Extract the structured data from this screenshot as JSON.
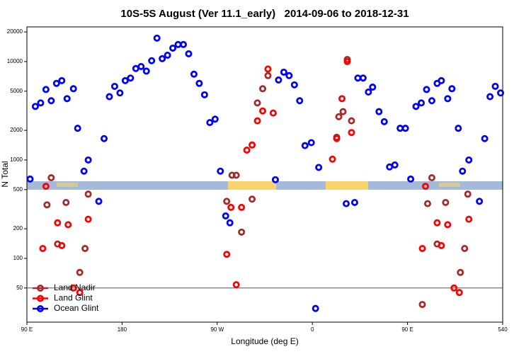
{
  "chart_data": {
    "type": "scatter",
    "title": "10S-5S August (Ver 11.1_early)   2014-09-06 to 2018-12-31",
    "x_label": "Longitude (deg E)",
    "y_label": "N Total",
    "log_y": true,
    "xlim": [
      90,
      540
    ],
    "ylim": [
      22.5,
      22500
    ],
    "xticks": [
      {
        "value": 90,
        "label": "90 E"
      },
      180,
      {
        "value": 270,
        "label": "90 W"
      },
      {
        "value": 360,
        "label": "0"
      },
      {
        "value": 450,
        "label": "90 E"
      },
      540
    ],
    "yticks": [
      50,
      100,
      200,
      500,
      1000,
      2000,
      5000,
      10000,
      20000
    ],
    "reference_line": 50,
    "legend": "bottom-left",
    "series": [
      {
        "name": "Land Nadir",
        "color": "#a52a2a",
        "x": [
          109,
          113,
          119,
          127,
          140,
          145,
          148,
          279,
          284,
          288,
          293,
          303,
          308,
          313,
          318,
          383,
          385,
          389,
          393,
          397,
          464,
          469,
          473,
          478,
          486,
          500,
          504,
          507
        ],
        "values": [
          350,
          660,
          140,
          370,
          72,
          126,
          450,
          380,
          700,
          700,
          185,
          400,
          3800,
          5300,
          7200,
          1700,
          2750,
          3100,
          10500,
          2500,
          34,
          360,
          660,
          140,
          370,
          72,
          126,
          450
        ]
      },
      {
        "name": "Land Glint",
        "color": "#ff0000",
        "x": [
          105,
          108,
          119,
          123,
          129,
          134,
          140,
          148,
          279,
          283,
          288,
          293,
          298,
          303,
          308,
          313,
          318,
          323,
          379,
          383,
          388,
          393,
          397,
          464,
          467,
          478,
          482,
          488,
          494,
          499,
          508
        ],
        "values": [
          126,
          540,
          230,
          135,
          220,
          50,
          45,
          250,
          110,
          330,
          54,
          330,
          1260,
          1420,
          2500,
          3150,
          8400,
          3000,
          1020,
          1650,
          4200,
          10000,
          1900,
          126,
          540,
          230,
          135,
          220,
          50,
          45,
          250
        ]
      },
      {
        "name": "Ocean Glint",
        "color": "#0000ff",
        "x": [
          93,
          98,
          103,
          108,
          113,
          118,
          123,
          128,
          134,
          138,
          144,
          148,
          158,
          163,
          168,
          173,
          178,
          183,
          188,
          193,
          198,
          203,
          208,
          213,
          218,
          223,
          228,
          233,
          238,
          243,
          248,
          253,
          258,
          263,
          268,
          273,
          278,
          282,
          325,
          328,
          333,
          338,
          343,
          348,
          353,
          359,
          363,
          366,
          392,
          400,
          403,
          408,
          413,
          417,
          423,
          428,
          433,
          438,
          443,
          448,
          453,
          458,
          463,
          468,
          473,
          478,
          482,
          488,
          492,
          498,
          502,
          508,
          518,
          523,
          528,
          533,
          538
        ],
        "values": [
          640,
          3500,
          3800,
          5200,
          4000,
          6000,
          6400,
          4200,
          5300,
          2100,
          770,
          1000,
          380,
          1650,
          4400,
          5600,
          4800,
          6400,
          6800,
          8500,
          8900,
          8000,
          10200,
          17300,
          10700,
          11600,
          13700,
          14900,
          14900,
          12000,
          7450,
          6000,
          4600,
          2400,
          2600,
          770,
          270,
          230,
          630,
          6500,
          7800,
          7200,
          5800,
          4000,
          1400,
          1500,
          31,
          840,
          360,
          370,
          6800,
          6800,
          4900,
          5500,
          3100,
          2450,
          850,
          890,
          2100,
          2100,
          640,
          3500,
          3800,
          5200,
          4000,
          6000,
          6400,
          4200,
          5300,
          2100,
          770,
          1000,
          380,
          1650,
          4400,
          5600,
          4800
        ]
      }
    ]
  }
}
